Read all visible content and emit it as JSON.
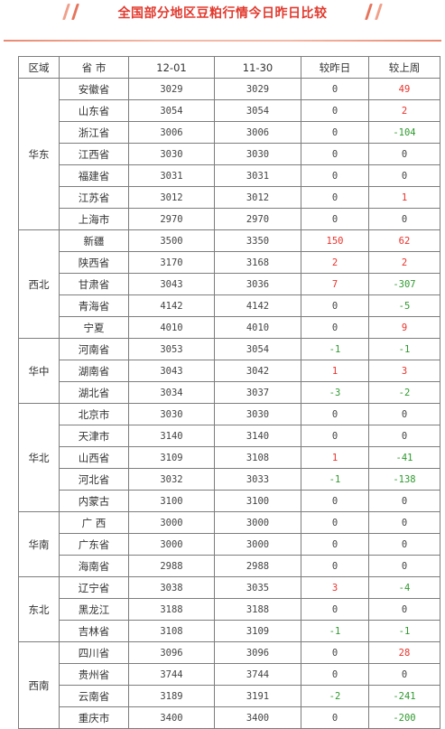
{
  "title": "全国部分地区豆粕行情今日昨日比较",
  "headers": [
    "区域",
    "省 市",
    "12-01",
    "11-30",
    "较昨日",
    "较上周"
  ],
  "colors": {
    "up": "#e8322b",
    "down": "#2e9a2e",
    "title": "#e23a2e"
  },
  "groups": [
    {
      "region": "华东",
      "rows": [
        {
          "prov": "安徽省",
          "d1": "3029",
          "d2": "3029",
          "cmp1": "0",
          "cmp2": "49"
        },
        {
          "prov": "山东省",
          "d1": "3054",
          "d2": "3054",
          "cmp1": "0",
          "cmp2": "2"
        },
        {
          "prov": "浙江省",
          "d1": "3006",
          "d2": "3006",
          "cmp1": "0",
          "cmp2": "-104"
        },
        {
          "prov": "江西省",
          "d1": "3030",
          "d2": "3030",
          "cmp1": "0",
          "cmp2": "0"
        },
        {
          "prov": "福建省",
          "d1": "3031",
          "d2": "3031",
          "cmp1": "0",
          "cmp2": "0"
        },
        {
          "prov": "江苏省",
          "d1": "3012",
          "d2": "3012",
          "cmp1": "0",
          "cmp2": "1"
        },
        {
          "prov": "上海市",
          "d1": "2970",
          "d2": "2970",
          "cmp1": "0",
          "cmp2": "0"
        }
      ]
    },
    {
      "region": "西北",
      "rows": [
        {
          "prov": "新疆",
          "d1": "3500",
          "d2": "3350",
          "cmp1": "150",
          "cmp2": "62"
        },
        {
          "prov": "陕西省",
          "d1": "3170",
          "d2": "3168",
          "cmp1": "2",
          "cmp2": "2"
        },
        {
          "prov": "甘肃省",
          "d1": "3043",
          "d2": "3036",
          "cmp1": "7",
          "cmp2": "-307"
        },
        {
          "prov": "青海省",
          "d1": "4142",
          "d2": "4142",
          "cmp1": "0",
          "cmp2": "-5"
        },
        {
          "prov": "宁夏",
          "d1": "4010",
          "d2": "4010",
          "cmp1": "0",
          "cmp2": "9"
        }
      ]
    },
    {
      "region": "华中",
      "rows": [
        {
          "prov": "河南省",
          "d1": "3053",
          "d2": "3054",
          "cmp1": "-1",
          "cmp2": "-1"
        },
        {
          "prov": "湖南省",
          "d1": "3043",
          "d2": "3042",
          "cmp1": "1",
          "cmp2": "3"
        },
        {
          "prov": "湖北省",
          "d1": "3034",
          "d2": "3037",
          "cmp1": "-3",
          "cmp2": "-2"
        }
      ]
    },
    {
      "region": "华北",
      "rows": [
        {
          "prov": "北京市",
          "d1": "3030",
          "d2": "3030",
          "cmp1": "0",
          "cmp2": "0"
        },
        {
          "prov": "天津市",
          "d1": "3140",
          "d2": "3140",
          "cmp1": "0",
          "cmp2": "0"
        },
        {
          "prov": "山西省",
          "d1": "3109",
          "d2": "3108",
          "cmp1": "1",
          "cmp2": "-41"
        },
        {
          "prov": "河北省",
          "d1": "3032",
          "d2": "3033",
          "cmp1": "-1",
          "cmp2": "-138"
        },
        {
          "prov": "内蒙古",
          "d1": "3100",
          "d2": "3100",
          "cmp1": "0",
          "cmp2": "0"
        }
      ]
    },
    {
      "region": "华南",
      "rows": [
        {
          "prov": "广 西",
          "d1": "3000",
          "d2": "3000",
          "cmp1": "0",
          "cmp2": "0"
        },
        {
          "prov": "广东省",
          "d1": "3000",
          "d2": "3000",
          "cmp1": "0",
          "cmp2": "0"
        },
        {
          "prov": "海南省",
          "d1": "2988",
          "d2": "2988",
          "cmp1": "0",
          "cmp2": "0"
        }
      ]
    },
    {
      "region": "东北",
      "rows": [
        {
          "prov": "辽宁省",
          "d1": "3038",
          "d2": "3035",
          "cmp1": "3",
          "cmp2": "-4"
        },
        {
          "prov": "黑龙江",
          "d1": "3188",
          "d2": "3188",
          "cmp1": "0",
          "cmp2": "0"
        },
        {
          "prov": "吉林省",
          "d1": "3108",
          "d2": "3109",
          "cmp1": "-1",
          "cmp2": "-1"
        }
      ]
    },
    {
      "region": "西南",
      "rows": [
        {
          "prov": "四川省",
          "d1": "3096",
          "d2": "3096",
          "cmp1": "0",
          "cmp2": "28"
        },
        {
          "prov": "贵州省",
          "d1": "3744",
          "d2": "3744",
          "cmp1": "0",
          "cmp2": "0"
        },
        {
          "prov": "云南省",
          "d1": "3189",
          "d2": "3191",
          "cmp1": "-2",
          "cmp2": "-241"
        },
        {
          "prov": "重庆市",
          "d1": "3400",
          "d2": "3400",
          "cmp1": "0",
          "cmp2": "-200"
        }
      ]
    }
  ]
}
